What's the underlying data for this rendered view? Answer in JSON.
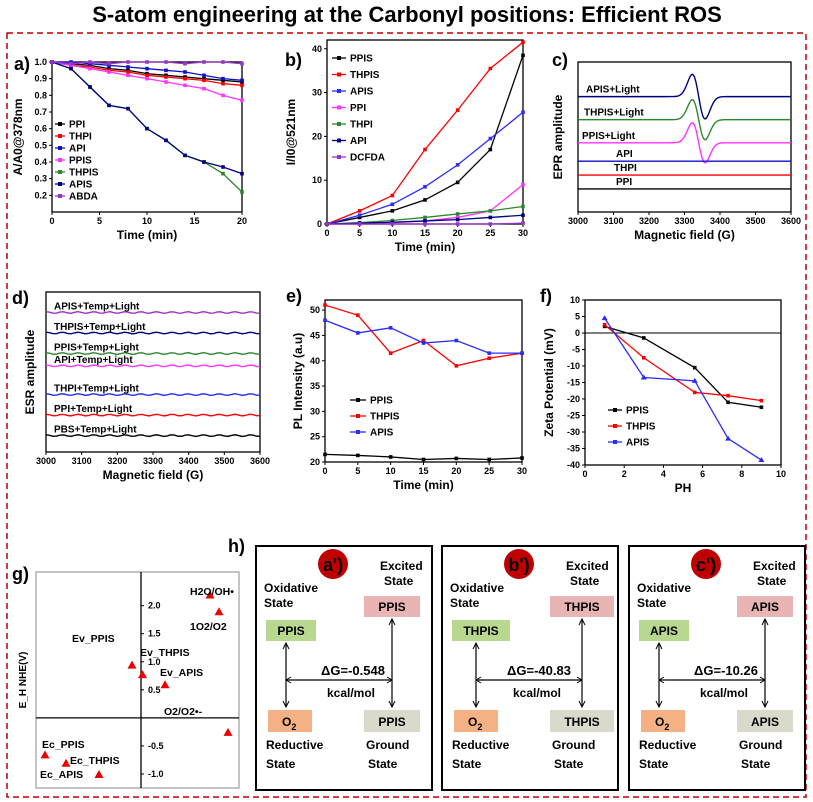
{
  "figure_title": "S-atom engineering at the Carbonyl  positions: Efficient ROS",
  "chart_data": [
    {
      "panel": "a)",
      "type": "line",
      "xlabel": "Time (min)",
      "ylabel": "A/A0@378nm",
      "xlim": [
        0,
        20
      ],
      "ylim": [
        0.1,
        1.0
      ],
      "xticks": [
        0,
        5,
        10,
        15,
        20
      ],
      "yticks": [
        0.2,
        0.3,
        0.4,
        0.5,
        0.6,
        0.7,
        0.8,
        0.9,
        1.0
      ],
      "series": [
        {
          "name": "PPI",
          "color": "#000000",
          "x": [
            0,
            2,
            4,
            6,
            8,
            10,
            12,
            14,
            16,
            18,
            20
          ],
          "y": [
            1.0,
            0.99,
            0.98,
            0.96,
            0.95,
            0.93,
            0.92,
            0.91,
            0.9,
            0.89,
            0.88
          ]
        },
        {
          "name": "THPI",
          "color": "#ff0000",
          "x": [
            0,
            2,
            4,
            6,
            8,
            10,
            12,
            14,
            16,
            18,
            20
          ],
          "y": [
            1.0,
            0.98,
            0.97,
            0.95,
            0.94,
            0.92,
            0.91,
            0.9,
            0.89,
            0.87,
            0.86
          ]
        },
        {
          "name": "API",
          "color": "#1010c8",
          "x": [
            0,
            2,
            4,
            6,
            8,
            10,
            12,
            14,
            16,
            18,
            20
          ],
          "y": [
            1.0,
            1.0,
            0.99,
            0.98,
            0.97,
            0.96,
            0.95,
            0.94,
            0.92,
            0.9,
            0.89
          ]
        },
        {
          "name": "PPIS",
          "color": "#ff33ff",
          "x": [
            0,
            2,
            4,
            6,
            8,
            10,
            12,
            14,
            16,
            18,
            20
          ],
          "y": [
            1.0,
            0.98,
            0.96,
            0.94,
            0.92,
            0.9,
            0.88,
            0.86,
            0.84,
            0.8,
            0.77
          ]
        },
        {
          "name": "THPIS",
          "color": "#2a8a2a",
          "x": [
            0,
            2,
            4,
            6,
            8,
            10,
            12,
            14,
            16,
            18,
            20
          ],
          "y": [
            1.0,
            0.96,
            0.85,
            0.74,
            0.72,
            0.6,
            0.53,
            0.44,
            0.4,
            0.33,
            0.22
          ]
        },
        {
          "name": "APIS",
          "color": "#000080",
          "x": [
            0,
            2,
            4,
            6,
            8,
            10,
            12,
            14,
            16,
            18,
            20
          ],
          "y": [
            1.0,
            0.96,
            0.85,
            0.74,
            0.72,
            0.6,
            0.53,
            0.44,
            0.4,
            0.37,
            0.33
          ]
        },
        {
          "name": "ABDA",
          "color": "#9933cc",
          "x": [
            0,
            2,
            4,
            6,
            8,
            10,
            12,
            14,
            16,
            18,
            20
          ],
          "y": [
            1.0,
            0.99,
            1.0,
            0.99,
            1.0,
            1.0,
            1.0,
            0.99,
            1.0,
            1.0,
            0.99
          ]
        }
      ]
    },
    {
      "panel": "b)",
      "type": "line",
      "xlabel": "Time (min)",
      "ylabel": "I/I0@521nm",
      "xlim": [
        0,
        30
      ],
      "ylim": [
        0,
        42
      ],
      "xticks": [
        0,
        5,
        10,
        15,
        20,
        25,
        30
      ],
      "yticks": [
        0,
        10,
        20,
        30,
        40
      ],
      "series": [
        {
          "name": "PPIS",
          "color": "#000000",
          "x": [
            0,
            5,
            10,
            15,
            20,
            25,
            30
          ],
          "y": [
            0,
            1.5,
            3,
            5.5,
            9.5,
            17,
            38.5
          ]
        },
        {
          "name": "THPIS",
          "color": "#ff0000",
          "x": [
            0,
            5,
            10,
            15,
            20,
            25,
            30
          ],
          "y": [
            0,
            3,
            6.5,
            17,
            26,
            35.5,
            41.5
          ]
        },
        {
          "name": "APIS",
          "color": "#2b2bff",
          "x": [
            0,
            5,
            10,
            15,
            20,
            25,
            30
          ],
          "y": [
            0,
            2,
            4.5,
            8.5,
            13.5,
            19.5,
            25.5
          ]
        },
        {
          "name": "PPI",
          "color": "#ff33ff",
          "x": [
            0,
            5,
            10,
            15,
            20,
            25,
            30
          ],
          "y": [
            0,
            0,
            0.3,
            0.7,
            1.5,
            3,
            9
          ]
        },
        {
          "name": "THPI",
          "color": "#2a8a2a",
          "x": [
            0,
            5,
            10,
            15,
            20,
            25,
            30
          ],
          "y": [
            0,
            0.3,
            0.8,
            1.5,
            2.3,
            3,
            4
          ]
        },
        {
          "name": "API",
          "color": "#000080",
          "x": [
            0,
            5,
            10,
            15,
            20,
            25,
            30
          ],
          "y": [
            0,
            0.2,
            0.4,
            0.7,
            1,
            1.5,
            2
          ]
        },
        {
          "name": "DCFDA",
          "color": "#9933cc",
          "x": [
            0,
            5,
            10,
            15,
            20,
            25,
            30
          ],
          "y": [
            0,
            0,
            0,
            0,
            0,
            0,
            0.2
          ]
        }
      ]
    },
    {
      "panel": "c)",
      "type": "line",
      "xlabel": "Magnetic field (G)",
      "ylabel": "EPR amplitude",
      "xlim": [
        3000,
        3600
      ],
      "xticks": [
        3000,
        3100,
        3200,
        3300,
        3400,
        3500,
        3600
      ],
      "series": [
        {
          "name": "APIS+Light",
          "color": "#000080",
          "baseline": 5,
          "signal_amplitude": 1.0,
          "center": 3340
        },
        {
          "name": "THPIS+Light",
          "color": "#2a8a2a",
          "baseline": 4,
          "signal_amplitude": 0.9,
          "center": 3340
        },
        {
          "name": "PPIS+Light",
          "color": "#ff33ff",
          "baseline": 3,
          "signal_amplitude": 0.9,
          "center": 3340
        },
        {
          "name": "API",
          "color": "#1010c8",
          "baseline": 2.2,
          "signal_amplitude": 0
        },
        {
          "name": "THPI",
          "color": "#ff0000",
          "baseline": 1.6,
          "signal_amplitude": 0
        },
        {
          "name": "PPI",
          "color": "#000000",
          "baseline": 1.0,
          "signal_amplitude": 0
        }
      ]
    },
    {
      "panel": "d)",
      "type": "line",
      "xlabel": "Magnetic field (G)",
      "ylabel": "ESR amplitude",
      "xlim": [
        3000,
        3600
      ],
      "xticks": [
        3000,
        3100,
        3200,
        3300,
        3400,
        3500,
        3600
      ],
      "series": [
        {
          "name": "APIS+Temp+Light",
          "color": "#9933cc",
          "baseline": 7
        },
        {
          "name": "THPIS+Temp+Light",
          "color": "#000080",
          "baseline": 6
        },
        {
          "name": "PPIS+Temp+Light",
          "color": "#2a8a2a",
          "baseline": 5
        },
        {
          "name": "API+Temp+Light",
          "color": "#ff33ff",
          "baseline": 4.4
        },
        {
          "name": "THPI+Temp+Light",
          "color": "#2b2bff",
          "baseline": 3
        },
        {
          "name": "PPI+Temp+Light",
          "color": "#ff0000",
          "baseline": 2
        },
        {
          "name": "PBS+Temp+Light",
          "color": "#000000",
          "baseline": 1
        }
      ]
    },
    {
      "panel": "e)",
      "type": "line",
      "xlabel": "Time (min)",
      "ylabel": "PL Intensity (a.u)",
      "xlim": [
        0,
        30
      ],
      "ylim": [
        20,
        52
      ],
      "xticks": [
        0,
        5,
        10,
        15,
        20,
        25,
        30
      ],
      "yticks": [
        20,
        25,
        30,
        35,
        40,
        45,
        50
      ],
      "series": [
        {
          "name": "PPIS",
          "color": "#000000",
          "x": [
            0,
            5,
            10,
            15,
            20,
            25,
            30
          ],
          "y": [
            21.5,
            21.3,
            21,
            20.5,
            20.7,
            20.5,
            20.8
          ]
        },
        {
          "name": "THPIS",
          "color": "#ff0000",
          "x": [
            0,
            5,
            10,
            15,
            20,
            25,
            30
          ],
          "y": [
            51,
            49,
            41.5,
            44,
            39,
            40.5,
            41.5
          ]
        },
        {
          "name": "APIS",
          "color": "#2b2bff",
          "x": [
            0,
            5,
            10,
            15,
            20,
            25,
            30
          ],
          "y": [
            48,
            45.5,
            46.5,
            43.5,
            44,
            41.5,
            41.5
          ]
        }
      ]
    },
    {
      "panel": "f)",
      "type": "line",
      "xlabel": "PH",
      "ylabel": "Zeta Potential (mV)",
      "xlim": [
        0,
        10
      ],
      "ylim": [
        -40,
        10
      ],
      "xticks": [
        0,
        2,
        4,
        6,
        8,
        10
      ],
      "yticks": [
        -40,
        -35,
        -30,
        -25,
        -20,
        -15,
        -10,
        -5,
        0,
        5,
        10
      ],
      "series": [
        {
          "name": "PPIS",
          "color": "#000000",
          "x": [
            1,
            3,
            5.6,
            7.3,
            9
          ],
          "y": [
            2,
            -1.5,
            -10.5,
            -21,
            -22.5
          ]
        },
        {
          "name": "THPIS",
          "color": "#ff0000",
          "x": [
            1,
            3,
            5.6,
            7.3,
            9
          ],
          "y": [
            2.5,
            -7.5,
            -18,
            -19,
            -20.5
          ]
        },
        {
          "name": "APIS",
          "color": "#2b2bff",
          "x": [
            1,
            3,
            5.6,
            7.3,
            9
          ],
          "y": [
            4.5,
            -13.5,
            -14.5,
            -32,
            -38.5
          ]
        }
      ]
    },
    {
      "panel": "g)",
      "type": "scatter",
      "ylabel": "E_H NHE(V)",
      "ylim": [
        -1.25,
        2.6
      ],
      "yticks": [
        -1.0,
        -0.5,
        0.0,
        0.5,
        1.0,
        1.5,
        2.0
      ],
      "points": [
        {
          "label": "H2O/OH•",
          "x": 2.3,
          "y": 2.2
        },
        {
          "label": "1O2/O2",
          "x": 2.6,
          "y": 1.9
        },
        {
          "label": "Ev_PPIS",
          "x": -0.3,
          "y": 0.95
        },
        {
          "label": "Ev_THPIS",
          "x": 0.05,
          "y": 0.78
        },
        {
          "label": "Ev_APIS",
          "x": 0.8,
          "y": 0.6
        },
        {
          "label": "O2/O2•-",
          "x": 2.9,
          "y": -0.25
        },
        {
          "label": "Ec_PPIS",
          "x": -3.2,
          "y": -0.65
        },
        {
          "label": "Ec_THPIS",
          "x": -2.5,
          "y": -0.8
        },
        {
          "label": "Ec_APIS",
          "x": -1.4,
          "y": -1.0
        }
      ]
    }
  ],
  "panel_h": {
    "label": "h)",
    "boxes": [
      {
        "tag": "a')",
        "material": "PPIS",
        "excited": "Excited",
        "state": "State",
        "oxidative": "Oxidative",
        "delta_g": "ΔG=-0.548",
        "unit": "kcal/mol",
        "o2": "O2",
        "reductive": "Reductive",
        "ground": "Ground"
      },
      {
        "tag": "b')",
        "material": "THPIS",
        "excited": "Excited",
        "state": "State",
        "oxidative": "Oxidative",
        "delta_g": "ΔG=-40.83",
        "unit": "kcal/mol",
        "o2": "O2",
        "reductive": "Reductive",
        "ground": "Ground"
      },
      {
        "tag": "c')",
        "material": "APIS",
        "excited": "Excited",
        "state": "State",
        "oxidative": "Oxidative",
        "delta_g": "ΔG=-10.26",
        "unit": "kcal/mol",
        "o2": "O2",
        "reductive": "Reductive",
        "ground": "Ground"
      }
    ]
  }
}
